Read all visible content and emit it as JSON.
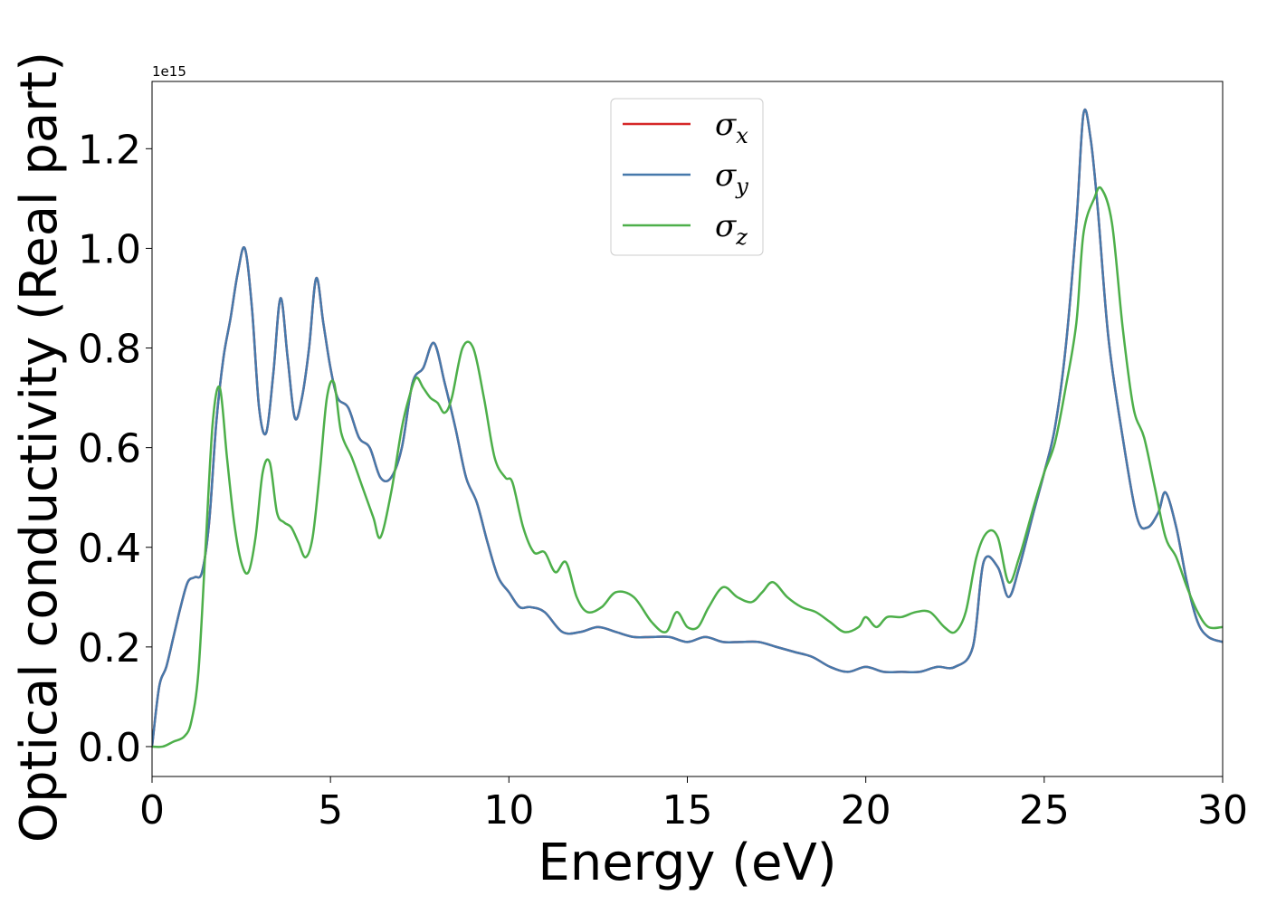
{
  "chart_data": {
    "type": "line",
    "xlabel": "Energy (eV)",
    "ylabel": "Optical conductivity (Real part)",
    "y_offset_text": "1e15",
    "xlim": [
      0,
      30
    ],
    "ylim": [
      -0.06,
      1.335
    ],
    "x_ticks": [
      0,
      5,
      10,
      15,
      20,
      25,
      30
    ],
    "x_tick_labels": [
      "0",
      "5",
      "10",
      "15",
      "20",
      "25",
      "30"
    ],
    "y_ticks": [
      0.0,
      0.2,
      0.4,
      0.6,
      0.8,
      1.0,
      1.2
    ],
    "y_tick_labels": [
      "0.0",
      "0.2",
      "0.4",
      "0.6",
      "0.8",
      "1.0",
      "1.2"
    ],
    "grid": false,
    "legend_position": "top-center",
    "series": [
      {
        "name": "σx",
        "name_base": "σ",
        "name_sub": "x",
        "color": "#d62728",
        "x": [
          0,
          0.2,
          0.4,
          0.6,
          0.8,
          1.0,
          1.2,
          1.4,
          1.6,
          1.8,
          2.0,
          2.2,
          2.4,
          2.6,
          2.8,
          3.0,
          3.2,
          3.4,
          3.6,
          3.8,
          4.0,
          4.2,
          4.4,
          4.6,
          4.8,
          5.0,
          5.2,
          5.5,
          5.8,
          6.1,
          6.4,
          6.7,
          7.0,
          7.3,
          7.6,
          7.9,
          8.2,
          8.5,
          8.8,
          9.1,
          9.4,
          9.7,
          10.0,
          10.3,
          10.6,
          11.0,
          11.5,
          12.0,
          12.5,
          13.0,
          13.5,
          14.0,
          14.5,
          15.0,
          15.5,
          16.0,
          16.5,
          17.0,
          17.5,
          18.0,
          18.5,
          19.0,
          19.5,
          20.0,
          20.5,
          21.0,
          21.5,
          22.0,
          22.5,
          23.0,
          23.3,
          23.7,
          24.0,
          24.3,
          24.7,
          25.0,
          25.3,
          25.6,
          25.9,
          26.1,
          26.3,
          26.5,
          26.8,
          27.2,
          27.6,
          27.9,
          28.2,
          28.4,
          28.7,
          29.0,
          29.3,
          29.6,
          30.0
        ],
        "y": [
          0.0,
          0.12,
          0.16,
          0.22,
          0.28,
          0.33,
          0.34,
          0.35,
          0.45,
          0.65,
          0.78,
          0.86,
          0.95,
          1.0,
          0.88,
          0.68,
          0.63,
          0.75,
          0.9,
          0.78,
          0.66,
          0.7,
          0.8,
          0.94,
          0.85,
          0.76,
          0.7,
          0.68,
          0.62,
          0.6,
          0.54,
          0.54,
          0.6,
          0.73,
          0.76,
          0.81,
          0.73,
          0.64,
          0.54,
          0.49,
          0.41,
          0.34,
          0.31,
          0.28,
          0.28,
          0.27,
          0.23,
          0.23,
          0.24,
          0.23,
          0.22,
          0.22,
          0.22,
          0.21,
          0.22,
          0.21,
          0.21,
          0.21,
          0.2,
          0.19,
          0.18,
          0.16,
          0.15,
          0.16,
          0.15,
          0.15,
          0.15,
          0.16,
          0.16,
          0.2,
          0.37,
          0.36,
          0.3,
          0.36,
          0.47,
          0.55,
          0.64,
          0.8,
          1.05,
          1.27,
          1.22,
          1.08,
          0.82,
          0.62,
          0.46,
          0.44,
          0.47,
          0.51,
          0.44,
          0.33,
          0.25,
          0.22,
          0.21
        ]
      },
      {
        "name": "σy",
        "name_base": "σ",
        "name_sub": "y",
        "color": "#4679ab",
        "x": [
          0,
          0.2,
          0.4,
          0.6,
          0.8,
          1.0,
          1.2,
          1.4,
          1.6,
          1.8,
          2.0,
          2.2,
          2.4,
          2.6,
          2.8,
          3.0,
          3.2,
          3.4,
          3.6,
          3.8,
          4.0,
          4.2,
          4.4,
          4.6,
          4.8,
          5.0,
          5.2,
          5.5,
          5.8,
          6.1,
          6.4,
          6.7,
          7.0,
          7.3,
          7.6,
          7.9,
          8.2,
          8.5,
          8.8,
          9.1,
          9.4,
          9.7,
          10.0,
          10.3,
          10.6,
          11.0,
          11.5,
          12.0,
          12.5,
          13.0,
          13.5,
          14.0,
          14.5,
          15.0,
          15.5,
          16.0,
          16.5,
          17.0,
          17.5,
          18.0,
          18.5,
          19.0,
          19.5,
          20.0,
          20.5,
          21.0,
          21.5,
          22.0,
          22.5,
          23.0,
          23.3,
          23.7,
          24.0,
          24.3,
          24.7,
          25.0,
          25.3,
          25.6,
          25.9,
          26.1,
          26.3,
          26.5,
          26.8,
          27.2,
          27.6,
          27.9,
          28.2,
          28.4,
          28.7,
          29.0,
          29.3,
          29.6,
          30.0
        ],
        "y": [
          0.0,
          0.12,
          0.16,
          0.22,
          0.28,
          0.33,
          0.34,
          0.35,
          0.45,
          0.65,
          0.78,
          0.86,
          0.95,
          1.0,
          0.88,
          0.68,
          0.63,
          0.75,
          0.9,
          0.78,
          0.66,
          0.7,
          0.8,
          0.94,
          0.85,
          0.76,
          0.7,
          0.68,
          0.62,
          0.6,
          0.54,
          0.54,
          0.6,
          0.73,
          0.76,
          0.81,
          0.73,
          0.64,
          0.54,
          0.49,
          0.41,
          0.34,
          0.31,
          0.28,
          0.28,
          0.27,
          0.23,
          0.23,
          0.24,
          0.23,
          0.22,
          0.22,
          0.22,
          0.21,
          0.22,
          0.21,
          0.21,
          0.21,
          0.2,
          0.19,
          0.18,
          0.16,
          0.15,
          0.16,
          0.15,
          0.15,
          0.15,
          0.16,
          0.16,
          0.2,
          0.37,
          0.36,
          0.3,
          0.36,
          0.47,
          0.55,
          0.64,
          0.8,
          1.05,
          1.27,
          1.22,
          1.08,
          0.82,
          0.62,
          0.46,
          0.44,
          0.47,
          0.51,
          0.44,
          0.33,
          0.25,
          0.22,
          0.21
        ]
      },
      {
        "name": "σz",
        "name_base": "σ",
        "name_sub": "z",
        "color": "#4daf4a",
        "x": [
          0,
          0.3,
          0.6,
          0.9,
          1.1,
          1.3,
          1.5,
          1.7,
          1.9,
          2.1,
          2.3,
          2.5,
          2.7,
          2.9,
          3.1,
          3.3,
          3.5,
          3.7,
          3.9,
          4.1,
          4.3,
          4.5,
          4.7,
          4.9,
          5.1,
          5.3,
          5.6,
          5.9,
          6.2,
          6.4,
          6.7,
          7.0,
          7.2,
          7.4,
          7.6,
          7.8,
          8.0,
          8.2,
          8.4,
          8.7,
          9.0,
          9.3,
          9.6,
          9.9,
          10.1,
          10.4,
          10.7,
          11.0,
          11.3,
          11.6,
          11.9,
          12.2,
          12.6,
          13.0,
          13.5,
          14.0,
          14.4,
          14.7,
          15.0,
          15.3,
          15.6,
          16.0,
          16.4,
          16.8,
          17.1,
          17.4,
          17.8,
          18.2,
          18.6,
          19.0,
          19.4,
          19.8,
          20.0,
          20.3,
          20.6,
          21.0,
          21.4,
          21.8,
          22.2,
          22.5,
          22.8,
          23.1,
          23.4,
          23.7,
          24.0,
          24.3,
          24.7,
          25.0,
          25.3,
          25.6,
          25.9,
          26.1,
          26.4,
          26.6,
          26.9,
          27.2,
          27.5,
          27.8,
          28.1,
          28.4,
          28.7,
          29.0,
          29.3,
          29.6,
          30.0
        ],
        "y": [
          0.0,
          0.0,
          0.01,
          0.02,
          0.05,
          0.15,
          0.4,
          0.65,
          0.72,
          0.58,
          0.45,
          0.37,
          0.35,
          0.42,
          0.55,
          0.57,
          0.47,
          0.45,
          0.44,
          0.41,
          0.38,
          0.42,
          0.55,
          0.7,
          0.73,
          0.63,
          0.58,
          0.52,
          0.46,
          0.42,
          0.51,
          0.64,
          0.7,
          0.74,
          0.72,
          0.7,
          0.69,
          0.67,
          0.7,
          0.8,
          0.8,
          0.7,
          0.58,
          0.54,
          0.53,
          0.44,
          0.39,
          0.39,
          0.35,
          0.37,
          0.3,
          0.27,
          0.28,
          0.31,
          0.3,
          0.25,
          0.23,
          0.27,
          0.24,
          0.24,
          0.28,
          0.32,
          0.3,
          0.29,
          0.31,
          0.33,
          0.3,
          0.28,
          0.27,
          0.25,
          0.23,
          0.24,
          0.26,
          0.24,
          0.26,
          0.26,
          0.27,
          0.27,
          0.24,
          0.23,
          0.27,
          0.38,
          0.43,
          0.42,
          0.33,
          0.38,
          0.48,
          0.55,
          0.61,
          0.72,
          0.85,
          1.03,
          1.1,
          1.12,
          1.05,
          0.84,
          0.68,
          0.62,
          0.52,
          0.42,
          0.38,
          0.32,
          0.27,
          0.24,
          0.24
        ]
      }
    ]
  }
}
